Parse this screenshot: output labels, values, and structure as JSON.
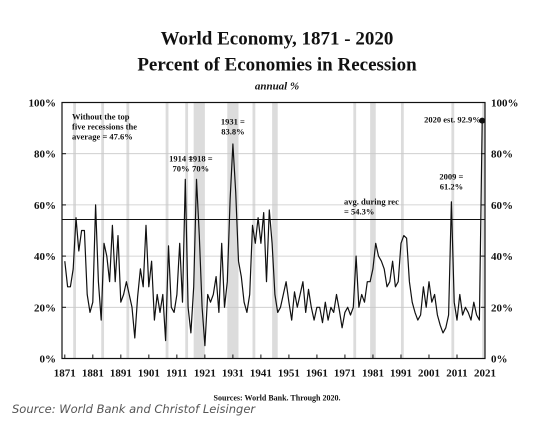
{
  "caption": "Source: World Bank and Christof Leisinger",
  "chart_data": {
    "type": "line",
    "title": "World Economy, 1871 - 2020",
    "subtitle": "Percent of Economies in Recession",
    "unit_note": "annual %",
    "sources_note": "Sources: World Bank. Through 2020.",
    "xlim": [
      1870,
      2021
    ],
    "ylim": [
      0,
      100
    ],
    "x_ticks": [
      "1871",
      "1881",
      "1891",
      "1901",
      "1911",
      "1921",
      "1931",
      "1941",
      "1951",
      "1961",
      "1971",
      "1981",
      "1991",
      "2001",
      "2011",
      "2021"
    ],
    "y_ticks_left": [
      "0%",
      "20%",
      "40%",
      "60%",
      "80%",
      "100%"
    ],
    "y_ticks_right": [
      "0%",
      "20%",
      "40%",
      "60%",
      "80%",
      "100%"
    ],
    "grid": "horizontal",
    "recession_bands": [
      [
        1874,
        1875
      ],
      [
        1884,
        1885
      ],
      [
        1893,
        1894
      ],
      [
        1907,
        1908
      ],
      [
        1914,
        1915
      ],
      [
        1917,
        1921
      ],
      [
        1929,
        1933
      ],
      [
        1938,
        1939
      ],
      [
        1945,
        1947
      ],
      [
        1974,
        1975
      ],
      [
        1980,
        1982
      ],
      [
        1991,
        1992
      ],
      [
        2009,
        2010
      ],
      [
        2020,
        2021
      ]
    ],
    "avg_line": {
      "value": 54.3,
      "label_line1": "avg. during rec",
      "label_line2": "= 54.3%"
    },
    "annotations": [
      {
        "lines": [
          "Without the top",
          "five recessions the",
          "average = 47.6%"
        ]
      },
      {
        "lines": [
          "1914 =",
          "70%"
        ],
        "x": 1914,
        "y": 70
      },
      {
        "lines": [
          "1918 =",
          "70%"
        ],
        "x": 1918,
        "y": 70
      },
      {
        "lines": [
          "1931 =",
          "83.8%"
        ],
        "x": 1931,
        "y": 83.8
      },
      {
        "lines": [
          "2009 =",
          "61.2%"
        ],
        "x": 2009,
        "y": 61.2
      },
      {
        "lines": [
          "2020 est. 92.9%"
        ],
        "x": 2020,
        "y": 92.9
      }
    ],
    "series": [
      {
        "x": [
          1871,
          1872,
          1873,
          1874,
          1875,
          1876,
          1877,
          1878,
          1879,
          1880,
          1881,
          1882,
          1883,
          1884,
          1885,
          1886,
          1887,
          1888,
          1889,
          1890,
          1891,
          1892,
          1893,
          1894,
          1895,
          1896,
          1897,
          1898,
          1899,
          1900,
          1901,
          1902,
          1903,
          1904,
          1905,
          1906,
          1907,
          1908,
          1909,
          1910,
          1911,
          1912,
          1913,
          1914,
          1915,
          1916,
          1917,
          1918,
          1919,
          1920,
          1921,
          1922,
          1923,
          1924,
          1925,
          1926,
          1927,
          1928,
          1929,
          1930,
          1931,
          1932,
          1933,
          1934,
          1935,
          1936,
          1937,
          1938,
          1939,
          1940,
          1941,
          1942,
          1943,
          1944,
          1945,
          1946,
          1947,
          1948,
          1949,
          1950,
          1951,
          1952,
          1953,
          1954,
          1955,
          1956,
          1957,
          1958,
          1959,
          1960,
          1961,
          1962,
          1963,
          1964,
          1965,
          1966,
          1967,
          1968,
          1969,
          1970,
          1971,
          1972,
          1973,
          1974,
          1975,
          1976,
          1977,
          1978,
          1979,
          1980,
          1981,
          1982,
          1983,
          1984,
          1985,
          1986,
          1987,
          1988,
          1989,
          1990,
          1991,
          1992,
          1993,
          1994,
          1995,
          1996,
          1997,
          1998,
          1999,
          2000,
          2001,
          2002,
          2003,
          2004,
          2005,
          2006,
          2007,
          2008,
          2009,
          2010,
          2011,
          2012,
          2013,
          2014,
          2015,
          2016,
          2017,
          2018,
          2019,
          2020
        ],
        "values": [
          38,
          28,
          28,
          35,
          55,
          42,
          50,
          50,
          25,
          18,
          22,
          60,
          30,
          15,
          45,
          40,
          30,
          52,
          30,
          48,
          22,
          25,
          30,
          25,
          20,
          8,
          24,
          35,
          28,
          52,
          28,
          38,
          15,
          25,
          18,
          25,
          7,
          44,
          20,
          18,
          25,
          45,
          22,
          70,
          20,
          10,
          28,
          70,
          48,
          20,
          5,
          25,
          22,
          25,
          32,
          18,
          45,
          20,
          30,
          62,
          83.8,
          65,
          38,
          32,
          22,
          18,
          25,
          52,
          45,
          55,
          45,
          57,
          30,
          58,
          45,
          25,
          18,
          20,
          25,
          30,
          22,
          15,
          26,
          20,
          25,
          30,
          18,
          27,
          20,
          15,
          20,
          20,
          14,
          22,
          15,
          20,
          18,
          25,
          19,
          12,
          18,
          20,
          17,
          20,
          40,
          20,
          25,
          22,
          30,
          30,
          35,
          45,
          40,
          38,
          35,
          28,
          30,
          38,
          28,
          30,
          45,
          48,
          47,
          30,
          22,
          18,
          15,
          17,
          28,
          20,
          30,
          22,
          25,
          17,
          13,
          10,
          12,
          17,
          61.2,
          22,
          15,
          25,
          17,
          20,
          18,
          15,
          22,
          17,
          15,
          92.9
        ]
      }
    ]
  }
}
